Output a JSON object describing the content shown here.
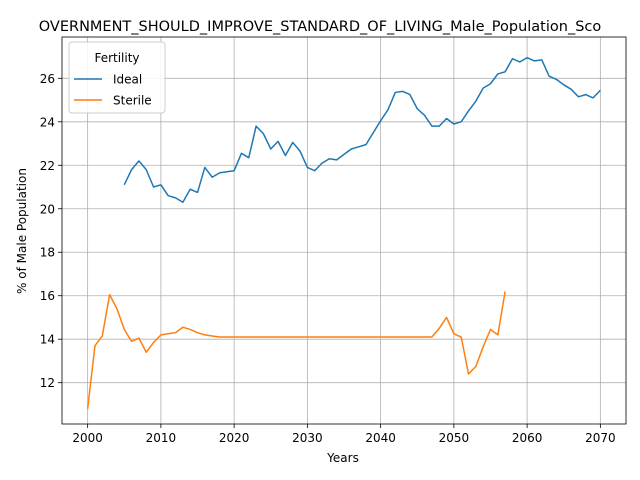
{
  "chart_data": {
    "type": "line",
    "title": "OVERNMENT_SHOULD_IMPROVE_STANDARD_OF_LIVING_Male_Population_Sco",
    "xlabel": "Years",
    "ylabel": "% of Male Population",
    "xlim": [
      1996.5,
      2073.5
    ],
    "ylim": [
      10.1,
      27.9
    ],
    "xticks": [
      2000,
      2010,
      2020,
      2030,
      2040,
      2050,
      2060,
      2070
    ],
    "yticks": [
      12,
      14,
      16,
      18,
      20,
      22,
      24,
      26
    ],
    "grid": true,
    "legend": {
      "title": "Fertility",
      "position": "top-left"
    },
    "series": [
      {
        "name": "Ideal",
        "color": "#1f77b4",
        "x": [
          2005,
          2006,
          2007,
          2008,
          2009,
          2010,
          2011,
          2012,
          2013,
          2014,
          2015,
          2016,
          2017,
          2018,
          2019,
          2020,
          2021,
          2022,
          2023,
          2024,
          2025,
          2026,
          2027,
          2028,
          2029,
          2030,
          2031,
          2032,
          2033,
          2034,
          2035,
          2036,
          2037,
          2038,
          2039,
          2040,
          2041,
          2042,
          2043,
          2044,
          2045,
          2046,
          2047,
          2048,
          2049,
          2050,
          2051,
          2052,
          2053,
          2054,
          2055,
          2056,
          2057,
          2058,
          2059,
          2060,
          2061,
          2062,
          2063,
          2064,
          2065,
          2066,
          2067,
          2068,
          2069,
          2070
        ],
        "y": [
          21.1,
          21.8,
          22.2,
          21.8,
          21.0,
          21.1,
          20.6,
          20.5,
          20.3,
          20.9,
          20.75,
          21.9,
          21.45,
          21.65,
          21.7,
          21.75,
          22.55,
          22.35,
          23.8,
          23.45,
          22.75,
          23.1,
          22.45,
          23.05,
          22.65,
          21.9,
          21.75,
          22.1,
          22.3,
          22.25,
          22.5,
          22.75,
          22.85,
          22.95,
          23.5,
          24.05,
          24.55,
          25.35,
          25.4,
          25.25,
          24.6,
          24.3,
          23.8,
          23.8,
          24.15,
          23.9,
          24.0,
          24.5,
          24.95,
          25.55,
          25.75,
          26.2,
          26.3,
          26.9,
          26.75,
          26.95,
          26.8,
          26.85,
          26.1,
          25.95,
          25.7,
          25.5,
          25.15,
          25.25,
          25.1,
          25.45
        ]
      },
      {
        "name": "Sterile",
        "color": "#ff7f0e",
        "x": [
          2000,
          2001,
          2002,
          2003,
          2004,
          2005,
          2006,
          2007,
          2008,
          2009,
          2010,
          2011,
          2012,
          2013,
          2014,
          2015,
          2016,
          2017,
          2018,
          2019,
          2020,
          2021,
          2022,
          2023,
          2024,
          2025,
          2026,
          2027,
          2028,
          2029,
          2030,
          2031,
          2032,
          2033,
          2034,
          2035,
          2036,
          2037,
          2038,
          2039,
          2040,
          2041,
          2042,
          2043,
          2044,
          2045,
          2046,
          2047,
          2048,
          2049,
          2050,
          2051,
          2052,
          2053,
          2054,
          2055,
          2056,
          2057
        ],
        "y": [
          10.8,
          13.7,
          14.15,
          16.05,
          15.4,
          14.45,
          13.9,
          14.05,
          13.4,
          13.85,
          14.2,
          14.25,
          14.3,
          14.55,
          14.45,
          14.3,
          14.2,
          14.15,
          14.1,
          14.1,
          14.1,
          14.1,
          14.1,
          14.1,
          14.1,
          14.1,
          14.1,
          14.1,
          14.1,
          14.1,
          14.1,
          14.1,
          14.1,
          14.1,
          14.1,
          14.1,
          14.1,
          14.1,
          14.1,
          14.1,
          14.1,
          14.1,
          14.1,
          14.1,
          14.1,
          14.1,
          14.1,
          14.1,
          14.5,
          15.0,
          14.25,
          14.1,
          12.4,
          12.75,
          13.65,
          14.45,
          14.2,
          16.2
        ]
      }
    ]
  }
}
